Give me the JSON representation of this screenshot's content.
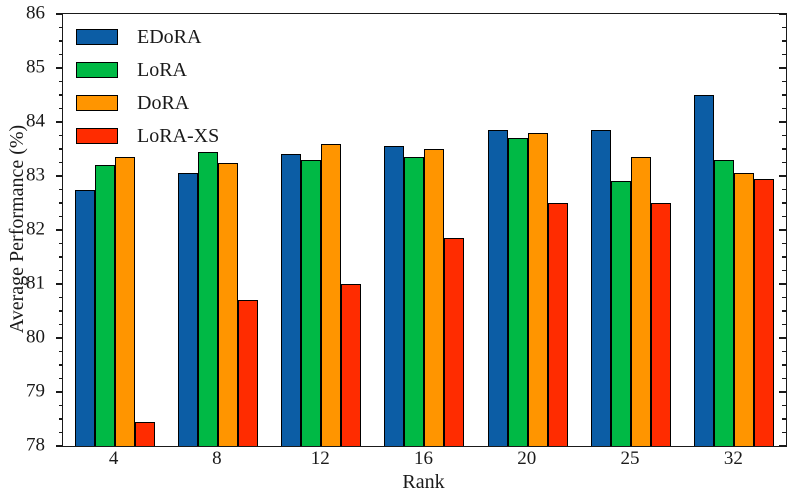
{
  "chart_data": {
    "type": "bar",
    "title": "",
    "xlabel": "Rank",
    "ylabel": "Average Performance (%)",
    "categories": [
      "4",
      "8",
      "12",
      "16",
      "20",
      "25",
      "32"
    ],
    "series": [
      {
        "name": "EDoRA",
        "color": "#0C5DA5",
        "values": [
          82.75,
          83.05,
          83.4,
          83.55,
          83.85,
          83.85,
          84.5
        ]
      },
      {
        "name": "LoRA",
        "color": "#00B945",
        "values": [
          83.2,
          83.45,
          83.3,
          83.35,
          83.7,
          82.9,
          83.3
        ]
      },
      {
        "name": "DoRA",
        "color": "#FF9500",
        "values": [
          83.35,
          83.25,
          83.6,
          83.5,
          83.8,
          83.35,
          83.05
        ]
      },
      {
        "name": "LoRA-XS",
        "color": "#FF2C00",
        "values": [
          78.45,
          80.7,
          81.0,
          81.85,
          82.5,
          82.5,
          82.95
        ]
      }
    ],
    "ylim": [
      78,
      86
    ],
    "ytick_step": 1,
    "minor_tick_step": 0.25,
    "grid": false,
    "legend_position": "upper left",
    "background": "#ffffff",
    "spine_color": "#1a1a1a"
  }
}
